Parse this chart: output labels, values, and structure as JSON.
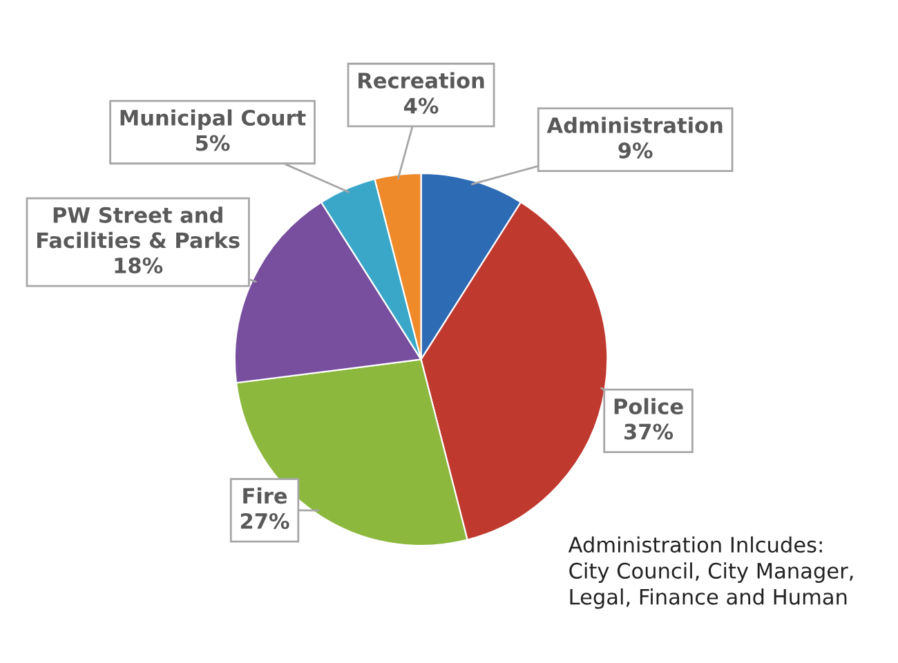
{
  "chart_data": {
    "type": "pie",
    "categories": [
      "Administration",
      "Police",
      "Fire",
      "PW Street and\nFacilities & Parks",
      "Municipal Court",
      "Recreation"
    ],
    "values": [
      9,
      37,
      27,
      18,
      5,
      4
    ],
    "value_labels": [
      "9%",
      "37%",
      "27%",
      "18%",
      "5%",
      "4%"
    ],
    "colors": [
      "#2e6bb5",
      "#c0392f",
      "#8cb83e",
      "#774f9e",
      "#3aa7c9",
      "#ef8a2a"
    ],
    "annotations": [
      "Administration Inlcudes:\nCity Council, City Manager,\nLegal, Finance and Human"
    ],
    "legend": false
  }
}
